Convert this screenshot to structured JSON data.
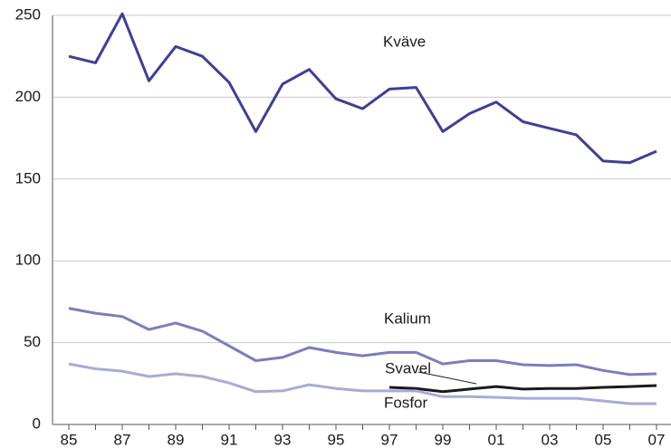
{
  "chart_data": {
    "type": "line",
    "categories": [
      "85",
      null,
      "87",
      null,
      "89",
      null,
      "91",
      null,
      "93",
      null,
      "95",
      null,
      "97",
      null,
      "99",
      null,
      "01",
      null,
      "03",
      null,
      "05",
      null,
      "07"
    ],
    "series": [
      {
        "name": "Kväve",
        "color": "#3d3f96",
        "values": [
          225,
          221,
          251,
          210,
          231,
          225,
          209,
          179,
          208,
          217,
          199,
          193,
          205,
          206,
          179,
          190,
          197,
          185,
          181,
          177,
          161,
          160,
          167
        ]
      },
      {
        "name": "Kalium",
        "color": "#7c7dbb",
        "values": [
          71,
          68,
          66,
          58,
          62,
          57,
          48,
          39,
          41,
          47,
          44,
          42,
          44,
          44,
          37,
          39,
          39,
          36.5,
          36,
          36.5,
          33,
          30.5,
          31
        ]
      },
      {
        "name": "Svavel",
        "color": "#1a1a1a",
        "values": [
          null,
          null,
          null,
          null,
          null,
          null,
          null,
          null,
          null,
          null,
          null,
          null,
          22.7,
          22,
          20,
          21.6,
          23.2,
          21.6,
          22,
          22,
          22.7,
          23.2,
          23.8
        ]
      },
      {
        "name": "Fosfor",
        "color": "#a9aad6",
        "values": [
          37,
          34,
          32.6,
          29.3,
          31,
          29.3,
          25.4,
          20,
          20.5,
          24.3,
          22,
          20.5,
          20.5,
          20.5,
          17,
          17,
          16.6,
          16,
          16,
          16,
          14.4,
          12.7,
          12.7
        ]
      }
    ],
    "ylim": [
      0,
      250
    ],
    "yticks": [
      0,
      50,
      100,
      150,
      200,
      250
    ],
    "grid": true
  }
}
